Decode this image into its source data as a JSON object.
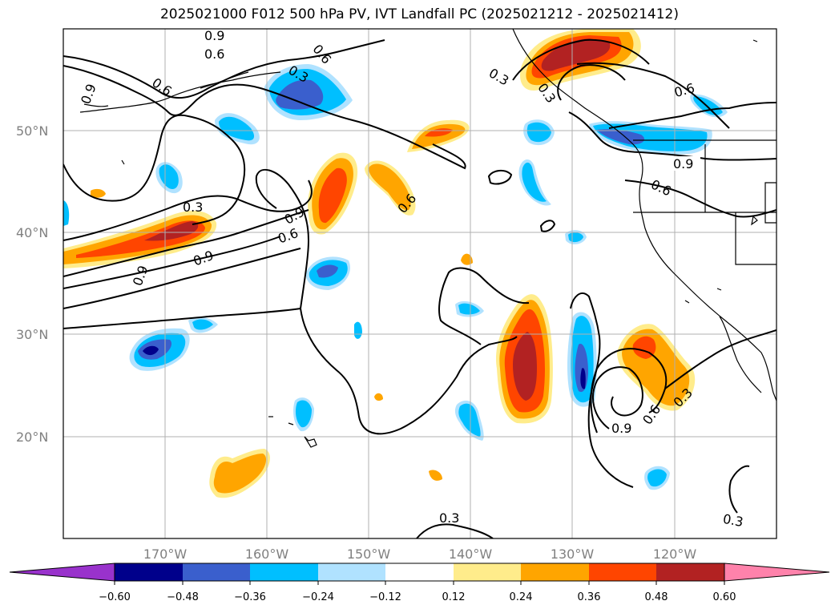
{
  "title": "2025021000 F012 500 hPa PV, IVT Landfall PC (2025021212 - 2025021412)",
  "map": {
    "projection": "PlateCarree",
    "lon_range": [
      -180,
      -110
    ],
    "lat_range": [
      10,
      60
    ],
    "gridlines": true,
    "lat_ticks": [
      "20°N",
      "30°N",
      "40°N",
      "50°N"
    ],
    "lon_ticks": [
      "170°W",
      "160°W",
      "150°W",
      "140°W",
      "130°W",
      "120°W"
    ],
    "contour_labels": [
      "0.9",
      "0.6",
      "0.9",
      "0.6",
      "0.3",
      "0.3",
      "0.9",
      "0.6",
      "0.9",
      "0.6",
      "0.9",
      "0.6",
      "0.3",
      "0.9",
      "0.6",
      "0.3",
      "0.9",
      "0.6",
      "0.3",
      "0.3",
      "0.6",
      "0.3"
    ]
  },
  "colorbar": {
    "ticks": [
      "−0.60",
      "−0.48",
      "−0.36",
      "−0.24",
      "−0.12",
      "0.12",
      "0.24",
      "0.36",
      "0.48",
      "0.60"
    ],
    "colors": [
      "#9932cc",
      "#00008b",
      "#3a5fcd",
      "#00bfff",
      "#b0e2ff",
      "#ffffff",
      "#ffec8b",
      "#ffa500",
      "#ff4500",
      "#b22222",
      "#ff82ab"
    ],
    "extend": "both"
  }
}
